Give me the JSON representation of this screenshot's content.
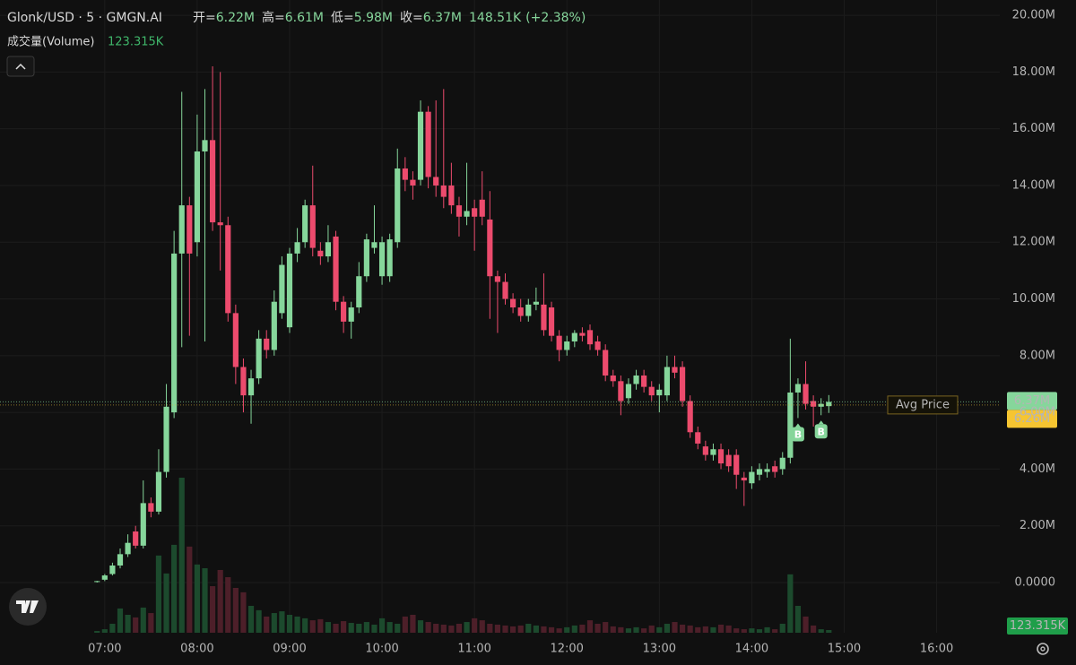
{
  "chart_data": {
    "type": "candlestick",
    "title": "Glonk/USD · 5 · GMGN.AI",
    "stats": [
      {
        "label": "开=",
        "value": 6.22,
        "value_label": "6.22M"
      },
      {
        "label": "高=",
        "value": 6.61,
        "value_label": "6.61M"
      },
      {
        "label": "低=",
        "value": 5.98,
        "value_label": "5.98M"
      },
      {
        "label": "收=",
        "value": 6.37,
        "value_label": "6.37M"
      }
    ],
    "change": 148.51,
    "change_label": "148.51K",
    "change_pct": 2.38,
    "change_pct_label": "(+2.38%)",
    "volume_title": "成交量(Volume)",
    "volume_label": "123.315K",
    "last_price": {
      "value": 6.37,
      "label": "6.37M"
    },
    "avg_price": {
      "value": 6.26,
      "label": "6.26M"
    },
    "avg_price_title": "Avg Price",
    "trades": [
      {
        "x": "14:30",
        "side": "B"
      },
      {
        "x": "14:45",
        "side": "B"
      }
    ],
    "up_color": "#86d69b",
    "down_color": "#ec4b6d",
    "volume_up_color": "#1c4a2d",
    "volume_down_color": "#4d1f29",
    "grid": true,
    "xlim": [
      "05:52",
      "16:41"
    ],
    "xticks": [
      "07:00",
      "08:00",
      "09:00",
      "10:00",
      "11:00",
      "12:00",
      "13:00",
      "14:00",
      "15:00",
      "16:00"
    ],
    "ylim": [
      -1.77,
      20.54
    ],
    "yticks": [
      {
        "value": 0,
        "label": "0.0000"
      },
      {
        "value": 2,
        "label": "2.00M"
      },
      {
        "value": 4,
        "label": "4.00M"
      },
      {
        "value": 6,
        "label": "6.00M"
      },
      {
        "value": 8,
        "label": "8.00M"
      },
      {
        "value": 10,
        "label": "10.00M"
      },
      {
        "value": 12,
        "label": "12.00M"
      },
      {
        "value": 14,
        "label": "14.00M"
      },
      {
        "value": 16,
        "label": "16.00M"
      },
      {
        "value": 18,
        "label": "18.00M"
      },
      {
        "value": 20,
        "label": "20.00M"
      }
    ],
    "x": [
      "06:55",
      "07:00",
      "07:05",
      "07:10",
      "07:15",
      "07:20",
      "07:25",
      "07:30",
      "07:35",
      "07:40",
      "07:45",
      "07:50",
      "07:55",
      "08:00",
      "08:05",
      "08:10",
      "08:15",
      "08:20",
      "08:25",
      "08:30",
      "08:35",
      "08:40",
      "08:45",
      "08:50",
      "08:55",
      "09:00",
      "09:05",
      "09:10",
      "09:15",
      "09:20",
      "09:25",
      "09:30",
      "09:35",
      "09:40",
      "09:45",
      "09:50",
      "09:55",
      "10:00",
      "10:05",
      "10:10",
      "10:15",
      "10:20",
      "10:25",
      "10:30",
      "10:35",
      "10:40",
      "10:45",
      "10:50",
      "10:55",
      "11:00",
      "11:05",
      "11:10",
      "11:15",
      "11:20",
      "11:25",
      "11:30",
      "11:35",
      "11:40",
      "11:45",
      "11:50",
      "11:55",
      "12:00",
      "12:05",
      "12:10",
      "12:15",
      "12:20",
      "12:25",
      "12:30",
      "12:35",
      "12:40",
      "12:45",
      "12:50",
      "12:55",
      "13:00",
      "13:05",
      "13:10",
      "13:15",
      "13:20",
      "13:25",
      "13:30",
      "13:35",
      "13:40",
      "13:45",
      "13:50",
      "13:55",
      "14:00",
      "14:05",
      "14:10",
      "14:15",
      "14:20",
      "14:25",
      "14:30",
      "14:35",
      "14:40",
      "14:45",
      "14:50"
    ],
    "open": [
      0.02,
      0.1,
      0.3,
      0.6,
      1.0,
      1.8,
      1.3,
      2.8,
      2.5,
      3.9,
      6.0,
      11.6,
      13.3,
      12.0,
      15.2,
      15.6,
      12.7,
      12.6,
      9.5,
      7.6,
      6.6,
      7.2,
      8.6,
      8.2,
      9.5,
      9.0,
      11.6,
      12.0,
      13.3,
      11.7,
      11.5,
      12.2,
      9.9,
      9.2,
      9.7,
      10.8,
      11.8,
      10.8,
      10.8,
      12.0,
      14.6,
      14.2,
      14.2,
      16.6,
      14.3,
      14.0,
      14.0,
      13.3,
      12.9,
      13.2,
      13.5,
      12.8,
      10.8,
      10.6,
      10.0,
      9.7,
      9.4,
      9.8,
      9.8,
      9.7,
      8.7,
      8.2,
      8.5,
      8.8,
      8.9,
      8.5,
      8.2,
      7.3,
      7.1,
      6.5,
      7.0,
      7.3,
      6.9,
      6.6,
      6.6,
      7.6,
      7.6,
      6.4,
      5.3,
      4.8,
      4.5,
      4.7,
      4.5,
      4.5,
      3.7,
      3.5,
      3.8,
      3.9,
      4.1,
      4.0,
      4.4,
      6.7,
      7.0,
      6.4,
      6.2,
      6.22
    ],
    "high": [
      0.06,
      0.3,
      0.7,
      1.2,
      1.7,
      2.0,
      3.6,
      3.0,
      4.7,
      7.0,
      12.4,
      17.3,
      13.6,
      16.5,
      17.4,
      18.2,
      18.0,
      12.9,
      9.8,
      7.9,
      7.5,
      8.9,
      8.9,
      10.3,
      11.5,
      11.8,
      12.5,
      13.5,
      14.7,
      12.0,
      12.6,
      12.4,
      10.1,
      9.9,
      11.3,
      12.3,
      13.3,
      12.2,
      12.3,
      15.3,
      15.0,
      14.5,
      17.0,
      16.8,
      17.0,
      17.4,
      14.8,
      13.6,
      14.8,
      13.5,
      14.5,
      13.8,
      11.0,
      10.9,
      10.2,
      10.0,
      10.0,
      10.4,
      10.9,
      9.9,
      8.9,
      8.7,
      8.9,
      9.0,
      9.1,
      8.7,
      8.4,
      7.5,
      7.3,
      7.2,
      7.5,
      7.5,
      7.1,
      7.0,
      8.0,
      8.0,
      7.8,
      6.6,
      5.5,
      5.0,
      4.9,
      4.9,
      4.7,
      4.7,
      3.9,
      4.1,
      4.2,
      4.2,
      4.3,
      4.6,
      8.6,
      7.2,
      7.8,
      6.6,
      6.5,
      6.61
    ],
    "low": [
      0.0,
      0.05,
      0.25,
      0.5,
      0.9,
      1.2,
      1.2,
      2.3,
      2.4,
      3.7,
      5.8,
      8.3,
      8.7,
      11.5,
      8.5,
      12.4,
      11.0,
      9.2,
      7.0,
      6.0,
      5.6,
      7.0,
      7.9,
      8.0,
      9.3,
      8.8,
      11.3,
      11.8,
      11.5,
      11.2,
      11.3,
      9.6,
      8.8,
      8.6,
      9.5,
      10.6,
      11.6,
      10.5,
      10.6,
      11.8,
      13.8,
      13.5,
      14.0,
      13.9,
      13.6,
      13.2,
      13.0,
      12.2,
      12.6,
      11.7,
      12.6,
      9.3,
      8.8,
      9.8,
      9.5,
      9.2,
      9.2,
      9.6,
      8.7,
      8.5,
      7.8,
      8.0,
      8.3,
      8.5,
      8.2,
      8.0,
      7.1,
      6.9,
      5.9,
      6.3,
      6.8,
      6.7,
      6.4,
      6.0,
      6.4,
      7.2,
      6.2,
      5.1,
      4.7,
      4.3,
      4.3,
      4.0,
      3.9,
      3.3,
      2.7,
      3.3,
      3.6,
      3.7,
      3.7,
      3.8,
      4.2,
      5.8,
      6.1,
      5.5,
      5.9,
      5.98
    ],
    "close": [
      0.05,
      0.25,
      0.6,
      1.0,
      1.4,
      1.3,
      2.8,
      2.5,
      3.9,
      6.2,
      11.6,
      13.3,
      11.6,
      15.2,
      15.6,
      12.7,
      12.6,
      9.5,
      7.6,
      6.6,
      7.2,
      8.6,
      8.2,
      9.9,
      11.2,
      11.6,
      12.0,
      13.3,
      11.8,
      11.5,
      12.0,
      9.9,
      9.2,
      9.7,
      10.8,
      12.1,
      12.0,
      12.0,
      12.1,
      14.6,
      14.2,
      14.0,
      16.6,
      14.3,
      14.0,
      13.6,
      13.3,
      12.9,
      13.1,
      12.9,
      12.9,
      10.8,
      10.6,
      10.0,
      9.7,
      9.4,
      9.8,
      9.9,
      8.9,
      8.7,
      8.2,
      8.5,
      8.8,
      8.7,
      8.4,
      8.2,
      7.3,
      7.1,
      6.4,
      7.0,
      7.3,
      6.9,
      6.6,
      6.8,
      7.6,
      7.4,
      6.4,
      5.3,
      4.9,
      4.5,
      4.7,
      4.2,
      4.1,
      3.8,
      3.6,
      3.9,
      4.0,
      4.0,
      3.9,
      4.4,
      6.7,
      7.0,
      6.3,
      6.2,
      6.3,
      6.37
    ],
    "volume": [
      80,
      160,
      410,
      1110,
      820,
      700,
      1150,
      900,
      3530,
      2710,
      4020,
      7090,
      3940,
      3120,
      2950,
      2130,
      2870,
      2540,
      2050,
      1850,
      1230,
      1030,
      740,
      900,
      980,
      820,
      740,
      660,
      570,
      620,
      490,
      410,
      530,
      450,
      410,
      490,
      370,
      660,
      490,
      410,
      740,
      820,
      570,
      490,
      410,
      370,
      330,
      410,
      490,
      660,
      570,
      410,
      370,
      330,
      290,
      330,
      410,
      330,
      290,
      250,
      200,
      250,
      330,
      370,
      570,
      410,
      490,
      290,
      250,
      200,
      250,
      200,
      330,
      250,
      410,
      490,
      370,
      330,
      250,
      290,
      250,
      370,
      330,
      200,
      160,
      200,
      160,
      250,
      160,
      410,
      2670,
      1230,
      740,
      330,
      160,
      123.315
    ]
  }
}
